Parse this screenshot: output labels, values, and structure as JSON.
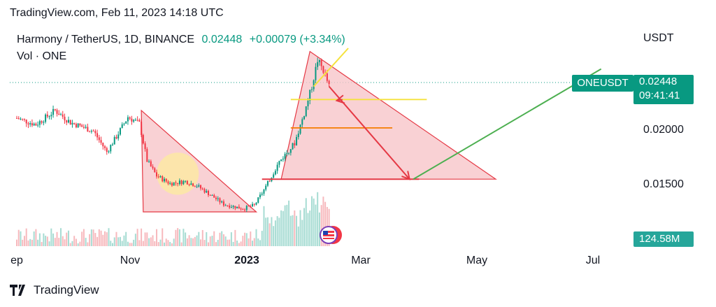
{
  "header": {
    "text": "TradingView.com, Feb 11, 2023 14:18 UTC"
  },
  "legend": {
    "symbol_line": "Harmony / TetherUS, 1D, BINANCE",
    "last": "0.02448",
    "change": "+0.00079 (+3.34%)",
    "volume_label": "Vol · ONE"
  },
  "axis": {
    "unit": "USDT",
    "y_ticks": [
      {
        "label": "0.02000",
        "value": 0.02
      },
      {
        "label": "0.01500",
        "value": 0.015
      }
    ],
    "x_ticks": [
      {
        "label": "ep",
        "day": 0
      },
      {
        "label": "Nov",
        "day": 61
      },
      {
        "label": "2023",
        "day": 122,
        "bold": true
      },
      {
        "label": "Mar",
        "day": 181
      },
      {
        "label": "May",
        "day": 242
      },
      {
        "label": "Jul",
        "day": 303
      }
    ]
  },
  "tags": {
    "symbol": "ONEUSDT",
    "price": "0.02448",
    "countdown": "09:41:41",
    "volume": "124.58M"
  },
  "brand": {
    "name": "TradingView"
  },
  "colors": {
    "up": "#089981",
    "down": "#f23645",
    "vol_up": "#a7dcd3",
    "vol_down": "#f7b9bd",
    "triangle_fill": "#f7c5c9",
    "triangle_stroke": "#e53945",
    "circle": "#fde9a3",
    "yellow": "#f5e23c",
    "orange": "#f57c00",
    "green": "#4caf50",
    "accent": "#089981"
  },
  "chart_data": {
    "type": "candlestick",
    "symbol": "Harmony / TetherUS, 1D, BINANCE",
    "last_price": 0.02448,
    "change": 0.00079,
    "change_pct": 3.34,
    "volume_last": "124.58M",
    "x_axis": "date (days from Sep 1, 2022)",
    "ylim": [
      0.0125,
      0.0272
    ],
    "anchor_points": [
      {
        "day": 0,
        "price": 0.0211
      },
      {
        "day": 10,
        "price": 0.0205
      },
      {
        "day": 20,
        "price": 0.0218
      },
      {
        "day": 28,
        "price": 0.0207
      },
      {
        "day": 40,
        "price": 0.0199
      },
      {
        "day": 47,
        "price": 0.018
      },
      {
        "day": 52,
        "price": 0.0194
      },
      {
        "day": 58,
        "price": 0.0212
      },
      {
        "day": 64,
        "price": 0.0206
      },
      {
        "day": 68,
        "price": 0.0172
      },
      {
        "day": 73,
        "price": 0.0158
      },
      {
        "day": 80,
        "price": 0.0151
      },
      {
        "day": 88,
        "price": 0.0153
      },
      {
        "day": 94,
        "price": 0.0149
      },
      {
        "day": 100,
        "price": 0.0142
      },
      {
        "day": 108,
        "price": 0.0132
      },
      {
        "day": 118,
        "price": 0.0128
      },
      {
        "day": 124,
        "price": 0.0131
      },
      {
        "day": 130,
        "price": 0.0148
      },
      {
        "day": 137,
        "price": 0.0171
      },
      {
        "day": 145,
        "price": 0.0188
      },
      {
        "day": 150,
        "price": 0.0215
      },
      {
        "day": 154,
        "price": 0.024
      },
      {
        "day": 157,
        "price": 0.0264
      },
      {
        "day": 160,
        "price": 0.0255
      },
      {
        "day": 163,
        "price": 0.024
      },
      {
        "day": 163.5,
        "price": 0.02448
      }
    ],
    "drawings": {
      "triangles": [
        {
          "points": [
            [
              65,
              0.0218
            ],
            [
              125,
              0.0125
            ],
            [
              66,
              0.0125
            ]
          ]
        },
        {
          "points": [
            [
              153,
              0.0272
            ],
            [
              250,
              0.0155
            ],
            [
              138,
              0.0155
            ]
          ]
        }
      ],
      "horizontal_lines": [
        {
          "color": "red",
          "price": 0.0155,
          "from_day": 128,
          "to_day": 210
        },
        {
          "color": "yellow",
          "price": 0.0228,
          "from_day": 143,
          "to_day": 214
        },
        {
          "color": "orange",
          "price": 0.0202,
          "from_day": 143,
          "to_day": 196
        }
      ],
      "arrows": [
        {
          "color": "red",
          "from": [
            163,
            0.024
          ],
          "to": [
            205,
            0.0155
          ]
        },
        {
          "color": "red",
          "from": [
            170,
            0.0228
          ],
          "to": [
            167,
            0.0227
          ]
        }
      ],
      "trend_lines": [
        {
          "color": "yellow",
          "from": [
            155,
            0.024
          ],
          "to": [
            173,
            0.0275
          ]
        },
        {
          "color": "green",
          "from": [
            207,
            0.0155
          ],
          "to": [
            305,
            0.0256
          ]
        }
      ],
      "circle": {
        "center": [
          84,
          0.016
        ],
        "radius_days": 11
      }
    }
  }
}
